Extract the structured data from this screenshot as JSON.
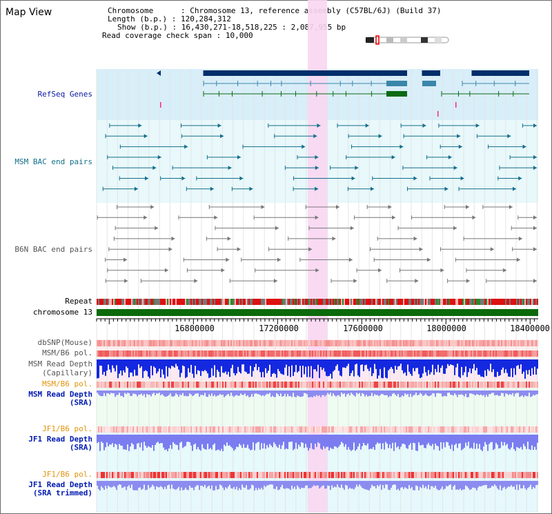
{
  "title": "Map View",
  "info": {
    "chromosome_key": "Chromosome",
    "chromosome_val": "Chromosome 13, reference assembly (C57BL/6J) (Build 37)",
    "length_key": "Length (b.p.)",
    "length_val": "120,284,312",
    "show_key": "Show (b.p.)",
    "show_val": "16,430,271-18,518,225 : 2,087,955 bp",
    "coverage_key": "Read coverage check span",
    "coverage_val": "10,000"
  },
  "tracks": {
    "refseq": "RefSeq Genes",
    "msm_bac": "MSM BAC end pairs",
    "b6n_bac": "B6N BAC end pairs",
    "repeat": "Repeat",
    "chrom": "chromosome 13",
    "dbsnp": "dbSNP(Mouse)",
    "msm_b6_pol_1": "MSM/B6 pol.",
    "msm_read_depth_cap_1": "MSM Read Depth",
    "msm_read_depth_cap_2": "(Capillary)",
    "msm_b6_pol_2": "MSM/B6 pol.",
    "msm_read_depth_sra_1": "MSM Read Depth",
    "msm_read_depth_sra_2": "(SRA)",
    "jf1_b6_pol_1": "JF1/B6 pol.",
    "jf1_read_depth_1": "JF1 Read Depth",
    "jf1_read_depth_2": "(SRA)",
    "jf1_b6_pol_2": "JF1/B6 pol.",
    "jf1_read_depth_trim_1": "JF1 Read Depth",
    "jf1_read_depth_trim_2": "(SRA trimmed)"
  },
  "axis_ticks": [
    "16800000",
    "17200000",
    "17600000",
    "18000000",
    "18400000"
  ],
  "colors": {
    "gene_navy": "#002e6a",
    "gene_teal": "#3a86aa",
    "gene_green": "#0a6a12",
    "msm_bac": "#126e8a",
    "b6n_bac": "#777777",
    "highlight": "#f9d6f2",
    "chrom_green": "#0b6a0b",
    "orange_label": "#e0940c",
    "navy_label": "#001ab0"
  }
}
